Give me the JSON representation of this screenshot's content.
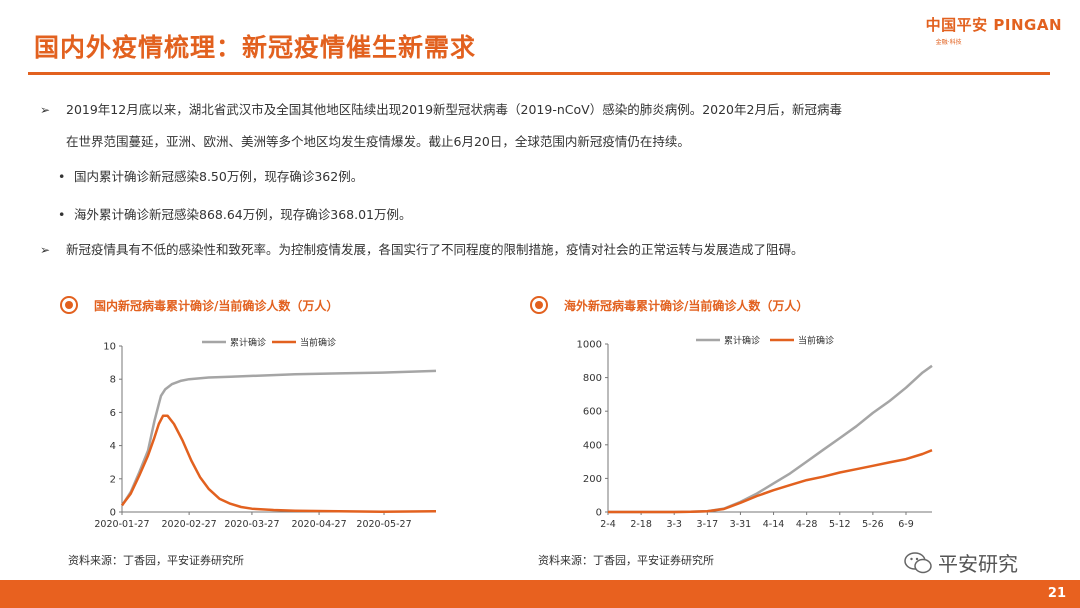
{
  "title": "国内外疫情梳理：新冠疫情催生新需求",
  "logo": {
    "brand": "中国平安 PINGAN",
    "sub": "金融·科技"
  },
  "bullets": [
    {
      "lines": [
        "2019年12月底以来，湖北省武汉市及全国其他地区陆续出现2019新型冠状病毒（2019-nCoV）感染的肺炎病例。2020年2月后，新冠病毒",
        "在世界范围蔓延，亚洲、欧洲、美洲等多个地区均发生疫情爆发。截止6月20日，全球范围内新冠疫情仍在持续。"
      ]
    },
    {
      "sub": "国内累计确诊新冠感染8.50万例，现存确诊362例。"
    },
    {
      "sub": "海外累计确诊新冠感染868.64万例，现存确诊368.01万例。"
    },
    {
      "lines": [
        "新冠疫情具有不低的感染性和致死率。为控制疫情发展，各国实行了不同程度的限制措施，疫情对社会的正常运转与发展造成了阻碍。"
      ]
    }
  ],
  "charts": [
    {
      "heading": "国内新冠病毒累计确诊/当前确诊人数（万人）",
      "source": "资料来源：丁香园，平安证券研究所"
    },
    {
      "heading": "海外新冠病毒累计确诊/当前确诊人数（万人）",
      "source": "资料来源：丁香园，平安证券研究所"
    }
  ],
  "chart_data": [
    {
      "type": "line",
      "title": "国内新冠病毒累计确诊/当前确诊人数（万人）",
      "ylim": [
        0,
        10
      ],
      "yticks": [
        "0",
        "2",
        "4",
        "6",
        "8",
        "10"
      ],
      "xticks": [
        "2020-01-27",
        "2020-02-27",
        "2020-03-27",
        "2020-04-27",
        "2020-05-27"
      ],
      "x_day_range": [
        0,
        145
      ],
      "xtick_days": [
        0,
        31,
        60,
        91,
        121
      ],
      "legend": [
        "累计确诊",
        "当前确诊"
      ],
      "series": [
        {
          "name": "累计确诊",
          "color": "#a5a5a5",
          "x": [
            0,
            4,
            8,
            12,
            15,
            17,
            18,
            20,
            23,
            27,
            31,
            40,
            50,
            60,
            80,
            100,
            120,
            145
          ],
          "values": [
            0.4,
            1.2,
            2.4,
            3.7,
            5.5,
            6.5,
            7.0,
            7.4,
            7.7,
            7.9,
            8.0,
            8.1,
            8.15,
            8.2,
            8.3,
            8.35,
            8.4,
            8.5
          ]
        },
        {
          "name": "当前确诊",
          "color": "#e2611f",
          "x": [
            0,
            4,
            8,
            12,
            15,
            17,
            19,
            21,
            24,
            28,
            32,
            36,
            40,
            45,
            50,
            55,
            60,
            70,
            80,
            100,
            120,
            145
          ],
          "values": [
            0.4,
            1.1,
            2.2,
            3.4,
            4.5,
            5.3,
            5.8,
            5.8,
            5.3,
            4.3,
            3.1,
            2.1,
            1.4,
            0.8,
            0.5,
            0.3,
            0.2,
            0.12,
            0.08,
            0.04,
            0.02,
            0.04
          ]
        }
      ]
    },
    {
      "type": "line",
      "title": "海外新冠病毒累计确诊/当前确诊人数（万人）",
      "ylim": [
        0,
        1000
      ],
      "yticks": [
        "0",
        "200",
        "400",
        "600",
        "800",
        "1000"
      ],
      "xticks": [
        "2-4",
        "2-18",
        "3-3",
        "3-17",
        "3-31",
        "4-14",
        "4-28",
        "5-12",
        "5-26",
        "6-9"
      ],
      "x_day_range": [
        0,
        137
      ],
      "xtick_days": [
        0,
        14,
        28,
        42,
        56,
        70,
        84,
        98,
        112,
        126
      ],
      "legend": [
        "累计确诊",
        "当前确诊"
      ],
      "series": [
        {
          "name": "累计确诊",
          "color": "#a5a5a5",
          "x": [
            0,
            28,
            35,
            42,
            49,
            56,
            63,
            70,
            77,
            84,
            91,
            98,
            105,
            112,
            119,
            126,
            133,
            137
          ],
          "values": [
            0,
            0,
            1,
            5,
            20,
            60,
            110,
            170,
            230,
            300,
            370,
            440,
            510,
            590,
            660,
            740,
            830,
            870
          ]
        },
        {
          "name": "当前确诊",
          "color": "#e2611f",
          "x": [
            0,
            28,
            35,
            42,
            49,
            56,
            63,
            70,
            77,
            84,
            91,
            98,
            105,
            112,
            119,
            126,
            133,
            137
          ],
          "values": [
            0,
            0,
            1,
            5,
            18,
            55,
            95,
            130,
            160,
            190,
            210,
            235,
            255,
            275,
            295,
            315,
            345,
            368
          ]
        }
      ]
    }
  ],
  "watermark": "平安研究",
  "page_number": "21"
}
